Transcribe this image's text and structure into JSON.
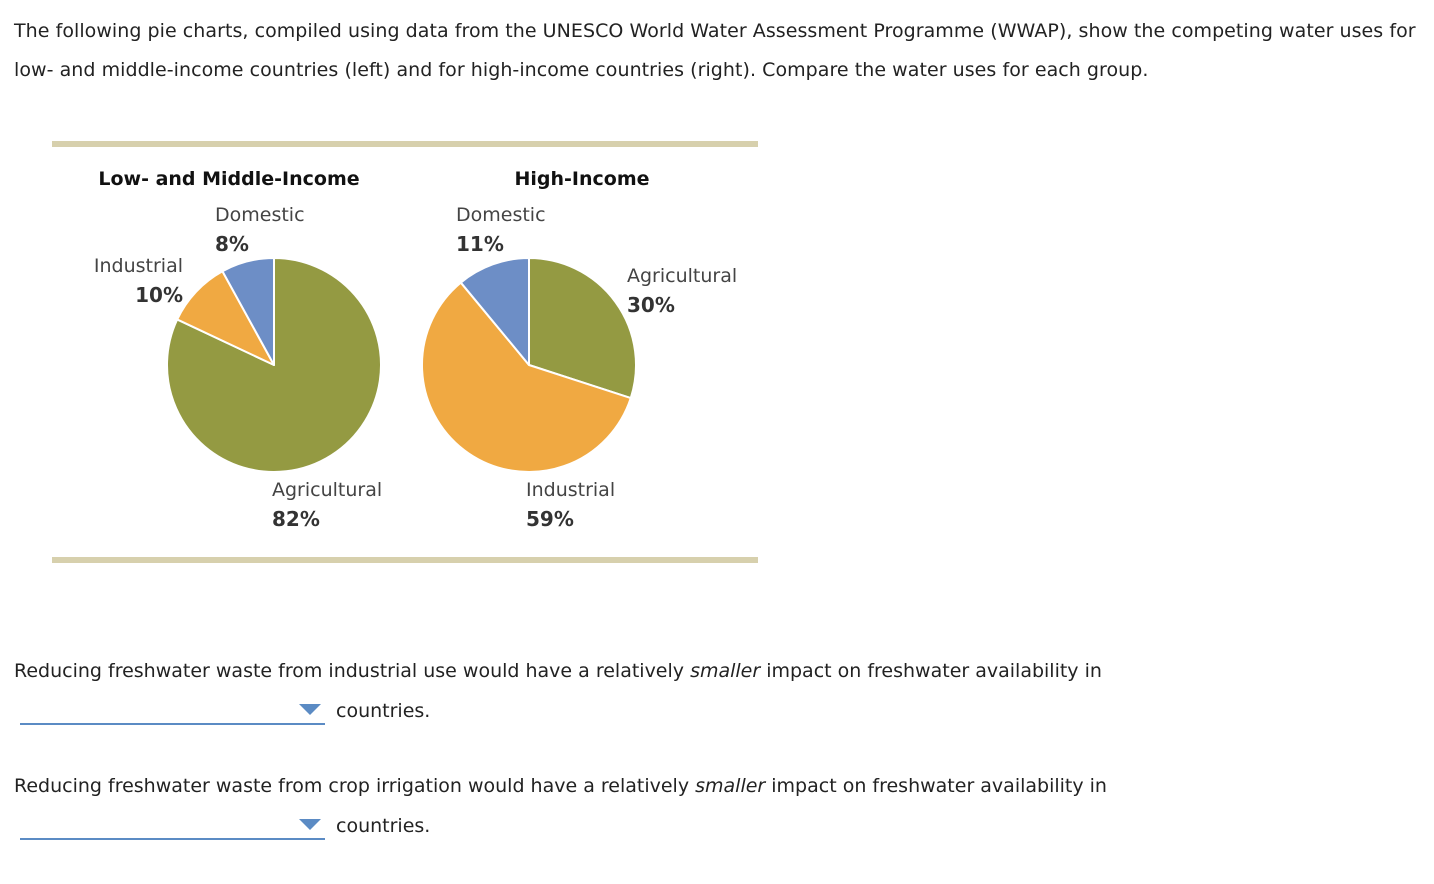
{
  "intro": {
    "line1": "The following pie charts, compiled using data from the UNESCO World Water Assessment Programme (WWAP), show the competing water uses for",
    "line2": "low- and middle-income countries (left) and for high-income countries (right). Compare the water uses for each group."
  },
  "chart_data": [
    {
      "type": "pie",
      "title": "Low- and Middle-Income",
      "start_angle_deg": 0,
      "slices": [
        {
          "label": "Agricultural",
          "value": 82,
          "value_label": "82%",
          "color": "#949a42"
        },
        {
          "label": "Industrial",
          "value": 10,
          "value_label": "10%",
          "color": "#f0a942"
        },
        {
          "label": "Domestic",
          "value": 8,
          "value_label": "8%",
          "color": "#6d8ec6"
        }
      ]
    },
    {
      "type": "pie",
      "title": "High-Income",
      "start_angle_deg": 0,
      "slices": [
        {
          "label": "Agricultural",
          "value": 30,
          "value_label": "30%",
          "color": "#949a42"
        },
        {
          "label": "Industrial",
          "value": 59,
          "value_label": "59%",
          "color": "#f0a942"
        },
        {
          "label": "Domestic",
          "value": 11,
          "value_label": "11%",
          "color": "#6d8ec6"
        }
      ]
    }
  ],
  "questions": [
    {
      "pre": "Reducing freshwater waste from industrial use would have a relatively ",
      "emph": "smaller",
      "post": " impact on freshwater availability in",
      "dropdown_value": "",
      "after": "countries."
    },
    {
      "pre": "Reducing freshwater waste from crop irrigation would have a relatively ",
      "emph": "smaller",
      "post": " impact on freshwater availability in",
      "dropdown_value": "",
      "after": "countries."
    }
  ],
  "colors": {
    "rule": "#d7d0ad",
    "dropdown_accent": "#5b8bc4"
  }
}
